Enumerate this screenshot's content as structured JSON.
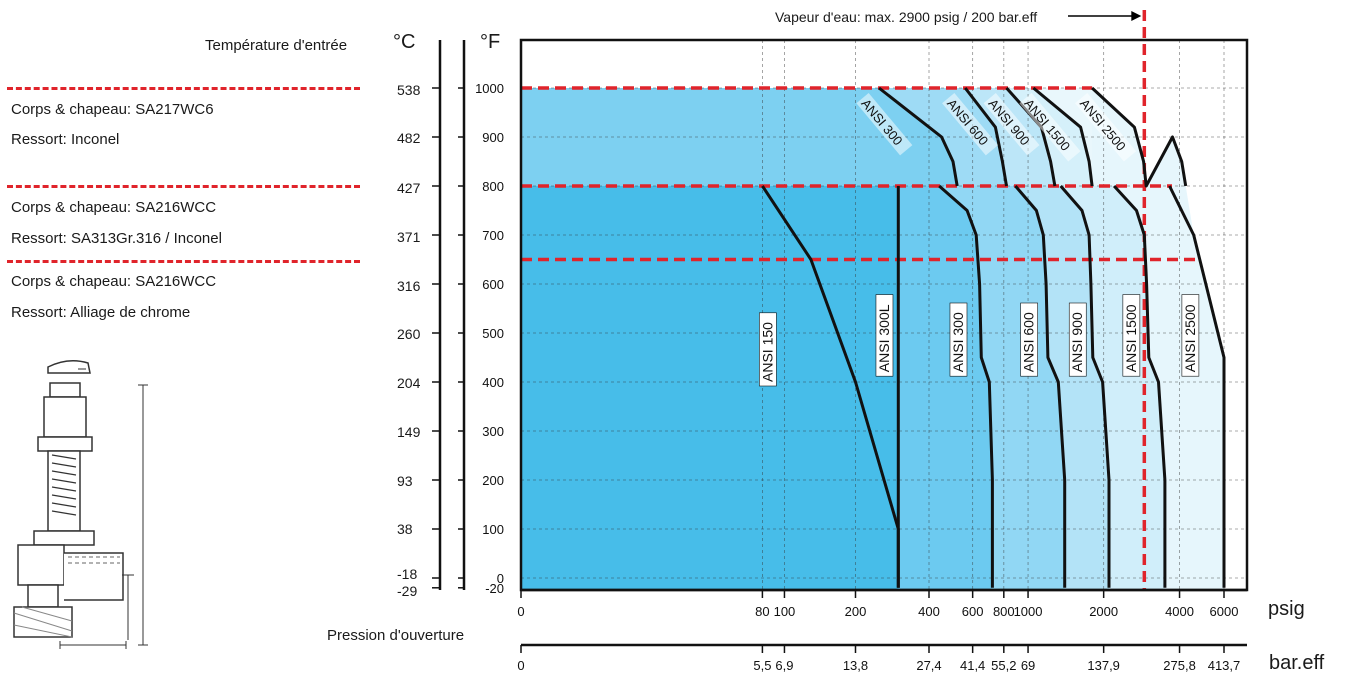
{
  "header": {
    "temp_label": "Température d'entrée",
    "celsius_unit": "°C",
    "fahrenheit_unit": "°F",
    "steam_note": "Vapeur d'eau: max. 2900 psig / 200 bar.eff"
  },
  "materials": [
    {
      "body": "Corps & chapeau: SA217WC6",
      "spring": "Ressort: Inconel"
    },
    {
      "body": "Corps & chapeau: SA216WCC",
      "spring": "Ressort: SA313Gr.316 / Inconel"
    },
    {
      "body": "Corps & chapeau: SA216WCC",
      "spring": "Ressort: Alliage de chrome"
    }
  ],
  "celsius_ticks": [
    "538",
    "482",
    "427",
    "371",
    "316",
    "260",
    "204",
    "149",
    "93",
    "38",
    "-18",
    "-29"
  ],
  "pressure_label": "Pression d'ouverture",
  "psig_unit": "psig",
  "bar_unit": "bar.eff",
  "colors": {
    "red": "#e0242b",
    "region_fills": [
      "#47bde9",
      "#6ccaf0",
      "#91d7f4",
      "#b3e3f7",
      "#d0eefa",
      "#e6f6fc"
    ]
  },
  "chart_data": {
    "type": "area",
    "x_scale": "log(psig + 10)",
    "xlim": [
      0,
      8000
    ],
    "ylim": [
      -20,
      1100
    ],
    "grid": true,
    "yticks": [
      1000,
      900,
      800,
      700,
      600,
      500,
      400,
      300,
      200,
      100,
      0,
      -20
    ],
    "xticks_psig": [
      0,
      80,
      100,
      200,
      400,
      600,
      800,
      1000,
      2000,
      4000,
      6000
    ],
    "xticks_bar": [
      0,
      5.5,
      6.9,
      13.8,
      27.4,
      41.4,
      55.2,
      69,
      137.9,
      275.8,
      413.7
    ],
    "xticks_bar_labels": [
      "0",
      "5,5",
      "6,9",
      "13,8",
      "27,4",
      "41,4",
      "55,2",
      "69",
      "137,9",
      "275,8",
      "413,7"
    ],
    "max_steam_psig": 2900,
    "temp_limits_F": [
      1000,
      800,
      650
    ],
    "series": [
      {
        "name": "ANSI 150",
        "x": [
          80,
          130,
          200,
          300,
          300
        ],
        "y": [
          800,
          650,
          400,
          100,
          -20
        ]
      },
      {
        "name": "ANSI 300L",
        "x": [
          300,
          300
        ],
        "y": [
          800,
          -20
        ]
      },
      {
        "name": "ANSI 300",
        "x": [
          440,
          570,
          620,
          640,
          650,
          700,
          720,
          720
        ],
        "y": [
          800,
          750,
          700,
          600,
          450,
          400,
          200,
          -20
        ]
      },
      {
        "name": "ANSI 600",
        "x": [
          890,
          1080,
          1150,
          1180,
          1200,
          1320,
          1400,
          1400
        ],
        "y": [
          800,
          750,
          700,
          600,
          450,
          400,
          200,
          -20
        ]
      },
      {
        "name": "ANSI 900",
        "x": [
          1350,
          1640,
          1750,
          1780,
          1810,
          1980,
          2100,
          2100
        ],
        "y": [
          800,
          750,
          700,
          600,
          450,
          400,
          200,
          -20
        ]
      },
      {
        "name": "ANSI 1500",
        "x": [
          2200,
          2700,
          2900,
          2960,
          3020,
          3300,
          3500,
          3500
        ],
        "y": [
          800,
          750,
          700,
          600,
          450,
          400,
          200,
          -20
        ]
      },
      {
        "name": "ANSI 2500",
        "x": [
          3650,
          4550,
          6000,
          6000
        ],
        "y": [
          800,
          700,
          450,
          -20
        ]
      },
      {
        "name": "ANSI 300",
        "x": [
          250,
          450,
          500,
          520
        ],
        "y": [
          1000,
          900,
          850,
          800
        ]
      },
      {
        "name": "ANSI 600",
        "x": [
          560,
          740,
          790,
          820
        ],
        "y": [
          1000,
          920,
          850,
          800
        ]
      },
      {
        "name": "ANSI 900",
        "x": [
          820,
          1130,
          1230,
          1280
        ],
        "y": [
          1000,
          920,
          850,
          800
        ]
      },
      {
        "name": "ANSI 1500",
        "x": [
          1050,
          1620,
          1750,
          1800
        ],
        "y": [
          1000,
          920,
          850,
          800
        ]
      },
      {
        "name": "ANSI 2500",
        "x": [
          1800,
          2650,
          2880,
          2950,
          3750,
          4080,
          4230
        ],
        "y": [
          1000,
          920,
          850,
          800,
          900,
          850,
          800
        ]
      }
    ]
  }
}
